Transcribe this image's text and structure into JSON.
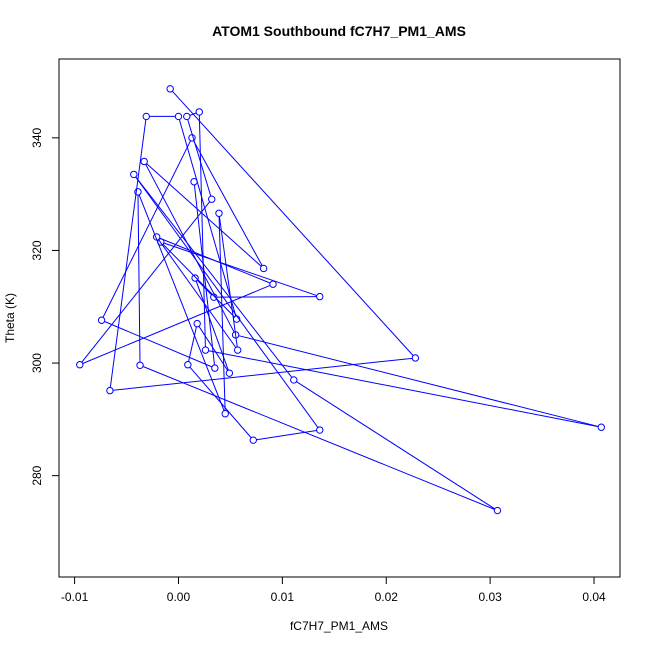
{
  "chart_data": {
    "type": "scatter",
    "title": "ATOM1 Southbound fC7H7_PM1_AMS",
    "xlabel": "fC7H7_PM1_AMS",
    "ylabel": "Theta (K)",
    "xlim": [
      -0.0115,
      0.0425
    ],
    "ylim": [
      262,
      354
    ],
    "x_ticks": [
      -0.01,
      0.0,
      0.01,
      0.02,
      0.03,
      0.04
    ],
    "x_tick_labels": [
      "-0.01",
      "0.00",
      "0.01",
      "0.02",
      "0.03",
      "0.04"
    ],
    "y_ticks": [
      280,
      300,
      320,
      340
    ],
    "y_tick_labels": [
      "280",
      "300",
      "320",
      "340"
    ],
    "series_color": "#0000ff",
    "marker": "open-circle",
    "connected": true,
    "grid": false,
    "x": [
      -0.0008,
      0.0228,
      -0.0066,
      -0.0031,
      0.0,
      0.0056,
      -0.0017,
      0.0136,
      0.0034,
      0.0016,
      0.0049,
      0.0018,
      0.0009,
      0.0072,
      0.0136,
      -0.0043,
      0.0111,
      0.0307,
      -0.0037,
      -0.0039,
      0.0045,
      0.0039,
      0.0057,
      -0.0021,
      0.0091,
      -0.0095,
      0.0032,
      0.0008,
      0.002,
      0.0026,
      0.0407,
      0.0055,
      -0.0033,
      0.0082,
      0.0013,
      -0.0074,
      0.0035,
      0.0015
    ],
    "y": [
      348.7,
      300.9,
      295.1,
      343.8,
      343.8,
      307.8,
      321.5,
      311.8,
      311.7,
      315.1,
      298.2,
      307.0,
      299.7,
      286.3,
      288.1,
      333.5,
      297.0,
      273.8,
      299.6,
      330.4,
      291.0,
      326.6,
      302.3,
      322.4,
      314.0,
      299.7,
      329.1,
      343.8,
      344.6,
      302.3,
      288.6,
      305.0,
      335.8,
      316.8,
      340.0,
      307.6,
      299.1,
      332.2
    ]
  }
}
